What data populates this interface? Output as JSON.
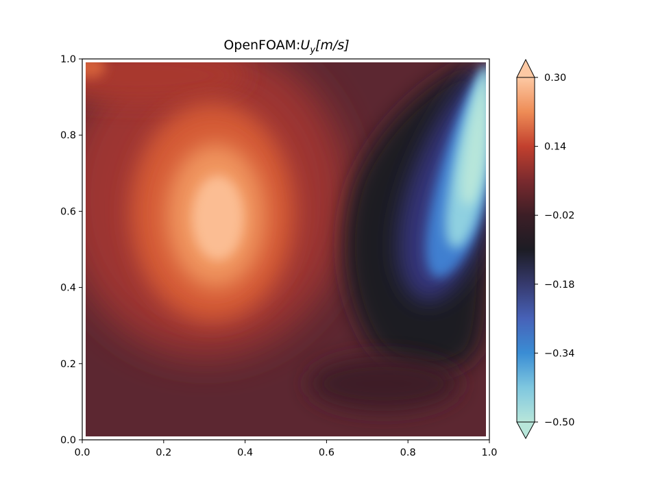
{
  "chart_data": {
    "type": "heatmap",
    "title_prefix": "OpenFOAM:",
    "title_var": "U",
    "title_sub": "y",
    "title_unit": "[m/s]",
    "xlim": [
      0.0,
      1.0
    ],
    "ylim": [
      0.0,
      1.0
    ],
    "x_ticks": [
      0.0,
      0.2,
      0.4,
      0.6,
      0.8,
      1.0
    ],
    "x_tick_labels": [
      "0.0",
      "0.2",
      "0.4",
      "0.6",
      "0.8",
      "1.0"
    ],
    "y_ticks": [
      0.0,
      0.2,
      0.4,
      0.6,
      0.8,
      1.0
    ],
    "y_tick_labels": [
      "0.0",
      "0.2",
      "0.4",
      "0.6",
      "0.8",
      "1.0"
    ],
    "grid": false,
    "colormap": "icefire",
    "colorbar": {
      "min": -0.5,
      "max": 0.3,
      "extend": "both",
      "ticks": [
        0.3,
        0.14,
        -0.02,
        -0.18,
        -0.34,
        -0.5
      ],
      "tick_labels": [
        "0.30",
        "0.14",
        "−0.02",
        "−0.18",
        "−0.34",
        "−0.50"
      ],
      "color_stops": [
        {
          "value": -0.5,
          "color": "#b8e6da"
        },
        {
          "value": -0.42,
          "color": "#7fc7df"
        },
        {
          "value": -0.34,
          "color": "#3a8dd4"
        },
        {
          "value": -0.26,
          "color": "#4762b8"
        },
        {
          "value": -0.18,
          "color": "#363a6e"
        },
        {
          "value": -0.1,
          "color": "#1c1c24"
        },
        {
          "value": -0.02,
          "color": "#3c1e26"
        },
        {
          "value": 0.06,
          "color": "#7a2a2e"
        },
        {
          "value": 0.14,
          "color": "#c2402e"
        },
        {
          "value": 0.22,
          "color": "#ee8c56"
        },
        {
          "value": 0.3,
          "color": "#fdc9a4"
        }
      ]
    },
    "field_features": [
      {
        "kind": "positive-max",
        "x": 0.33,
        "y": 0.58,
        "value": 0.28
      },
      {
        "kind": "negative-min",
        "x": 0.97,
        "y": 0.78,
        "value": -0.5
      },
      {
        "kind": "near-zero-band",
        "x": 0.68,
        "y": 0.45,
        "value": -0.1
      },
      {
        "kind": "background",
        "value": 0.0
      }
    ]
  }
}
